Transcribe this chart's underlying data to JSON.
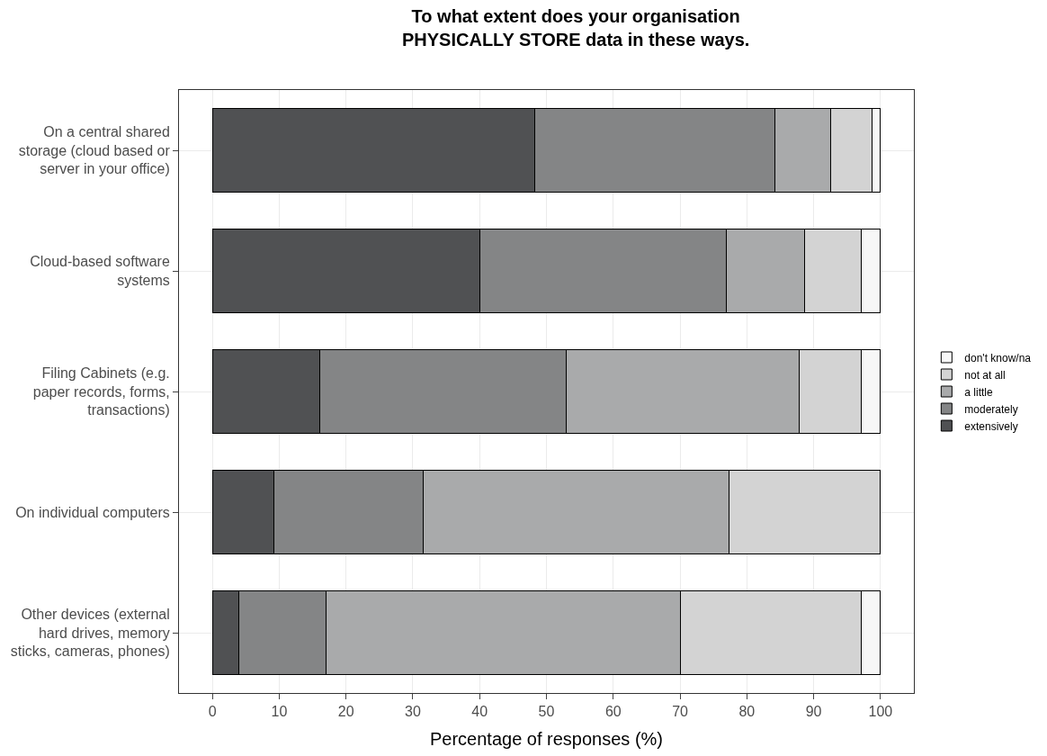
{
  "chart_data": {
    "type": "bar",
    "orientation": "horizontal",
    "stacked": true,
    "title": "To what extent does your organisation\nPHYSICALLY STORE data in these ways.",
    "xlabel": "Percentage of responses (%)",
    "categories": [
      "On a central shared\nstorage (cloud based or\nserver in your office)",
      "Cloud-based software\nsystems",
      "Filing Cabinets (e.g.\npaper records, forms,\ntransactions)",
      "On individual computers",
      "Other devices (external\nhard drives, memory\nsticks, cameras, phones)"
    ],
    "series": [
      {
        "name": "extensively",
        "color": "#505153",
        "values": [
          48.2,
          40.0,
          16.1,
          9.2,
          4.0
        ]
      },
      {
        "name": "moderately",
        "color": "#848586",
        "values": [
          36.0,
          36.9,
          36.8,
          22.3,
          13.0
        ]
      },
      {
        "name": "a little",
        "color": "#a9aaab",
        "values": [
          8.3,
          11.7,
          34.9,
          45.8,
          53.1
        ]
      },
      {
        "name": "not at all",
        "color": "#d3d3d3",
        "values": [
          6.2,
          8.5,
          9.3,
          22.7,
          27.0
        ]
      },
      {
        "name": "don't know/na",
        "color": "#f7f7f7",
        "values": [
          1.3,
          2.9,
          2.9,
          null,
          2.9
        ]
      }
    ],
    "xlim": [
      -5,
      105
    ],
    "xticks": [
      0,
      10,
      20,
      30,
      40,
      50,
      60,
      70,
      80,
      90,
      100
    ],
    "grid": true,
    "legend": "right"
  }
}
